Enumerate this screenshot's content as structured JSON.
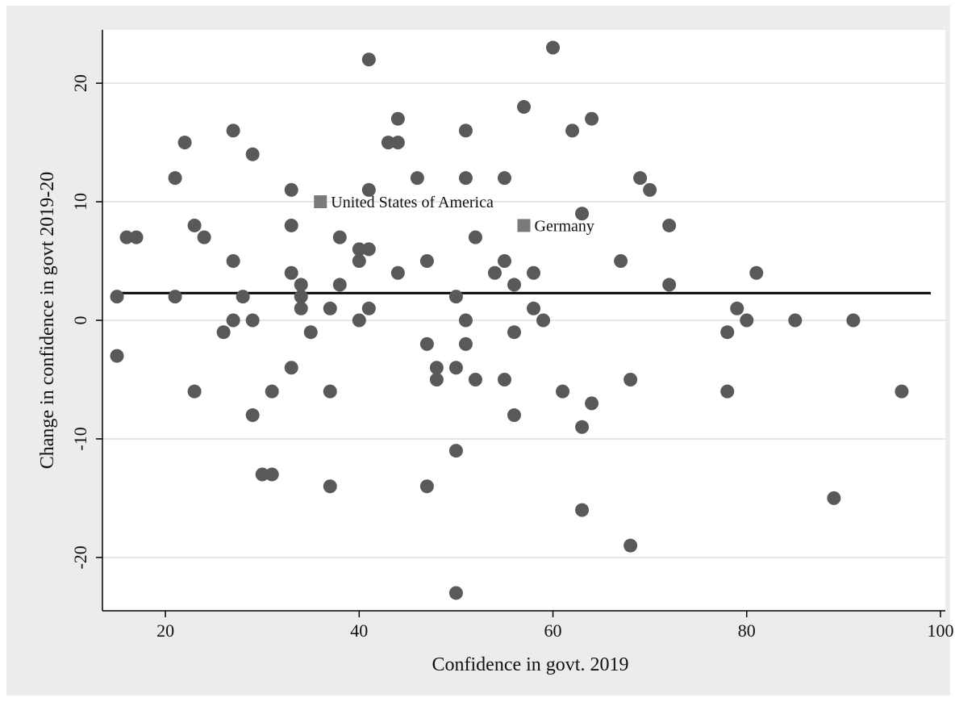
{
  "chart_data": {
    "type": "scatter",
    "title": "",
    "xlabel": "Confidence in govt. 2019",
    "ylabel": "Change in confidence in govt 2019-20",
    "xlim": [
      13.5,
      100.5
    ],
    "ylim": [
      -24.5,
      24.5
    ],
    "xticks": [
      20,
      40,
      60,
      80,
      100
    ],
    "yticks": [
      -20,
      -10,
      0,
      10,
      20
    ],
    "grid": "horizontal",
    "legend": "none",
    "colors": {
      "outer_background": "#ececec",
      "plot_background": "#ffffff",
      "points": "#595959",
      "highlight_points": "#7a7a7a",
      "fit_line": "#000000",
      "gridlines": "#e6e6e6"
    },
    "fit_line": {
      "x": [
        15,
        99
      ],
      "y": [
        2.3,
        2.3
      ]
    },
    "points": [
      {
        "x": 15,
        "y": 2
      },
      {
        "x": 15,
        "y": -3
      },
      {
        "x": 16,
        "y": 7
      },
      {
        "x": 17,
        "y": 7
      },
      {
        "x": 21,
        "y": 12
      },
      {
        "x": 21,
        "y": 2
      },
      {
        "x": 22,
        "y": 15
      },
      {
        "x": 23,
        "y": 8
      },
      {
        "x": 23,
        "y": -6
      },
      {
        "x": 24,
        "y": 7
      },
      {
        "x": 26,
        "y": -1
      },
      {
        "x": 27,
        "y": 16
      },
      {
        "x": 27,
        "y": 5
      },
      {
        "x": 27,
        "y": 0
      },
      {
        "x": 28,
        "y": 2
      },
      {
        "x": 29,
        "y": 14
      },
      {
        "x": 29,
        "y": 0
      },
      {
        "x": 29,
        "y": -8
      },
      {
        "x": 30,
        "y": -13
      },
      {
        "x": 31,
        "y": -13
      },
      {
        "x": 31,
        "y": -6
      },
      {
        "x": 33,
        "y": 11
      },
      {
        "x": 33,
        "y": 8
      },
      {
        "x": 33,
        "y": 4
      },
      {
        "x": 33,
        "y": -4
      },
      {
        "x": 34,
        "y": 3
      },
      {
        "x": 34,
        "y": 2
      },
      {
        "x": 34,
        "y": 1
      },
      {
        "x": 35,
        "y": -1
      },
      {
        "x": 37,
        "y": 1
      },
      {
        "x": 37,
        "y": -6
      },
      {
        "x": 37,
        "y": -14
      },
      {
        "x": 38,
        "y": 7
      },
      {
        "x": 38,
        "y": 3
      },
      {
        "x": 40,
        "y": 6
      },
      {
        "x": 40,
        "y": 5
      },
      {
        "x": 40,
        "y": 0
      },
      {
        "x": 41,
        "y": 22
      },
      {
        "x": 41,
        "y": 11
      },
      {
        "x": 41,
        "y": 6
      },
      {
        "x": 41,
        "y": 1
      },
      {
        "x": 43,
        "y": 15
      },
      {
        "x": 44,
        "y": 17
      },
      {
        "x": 44,
        "y": 15
      },
      {
        "x": 44,
        "y": 4
      },
      {
        "x": 46,
        "y": 12
      },
      {
        "x": 47,
        "y": 5
      },
      {
        "x": 47,
        "y": -2
      },
      {
        "x": 47,
        "y": -14
      },
      {
        "x": 48,
        "y": -4
      },
      {
        "x": 48,
        "y": -5
      },
      {
        "x": 50,
        "y": 2
      },
      {
        "x": 50,
        "y": -4
      },
      {
        "x": 50,
        "y": -11
      },
      {
        "x": 50,
        "y": -23
      },
      {
        "x": 51,
        "y": 16
      },
      {
        "x": 51,
        "y": 12
      },
      {
        "x": 51,
        "y": 0
      },
      {
        "x": 51,
        "y": -2
      },
      {
        "x": 52,
        "y": 7
      },
      {
        "x": 52,
        "y": -5
      },
      {
        "x": 54,
        "y": 4
      },
      {
        "x": 55,
        "y": 12
      },
      {
        "x": 55,
        "y": 5
      },
      {
        "x": 55,
        "y": -5
      },
      {
        "x": 56,
        "y": 3
      },
      {
        "x": 56,
        "y": -1
      },
      {
        "x": 56,
        "y": -8
      },
      {
        "x": 57,
        "y": 18
      },
      {
        "x": 58,
        "y": 4
      },
      {
        "x": 58,
        "y": 1
      },
      {
        "x": 59,
        "y": 0
      },
      {
        "x": 60,
        "y": 23
      },
      {
        "x": 61,
        "y": -6
      },
      {
        "x": 62,
        "y": 16
      },
      {
        "x": 63,
        "y": 9
      },
      {
        "x": 63,
        "y": -9
      },
      {
        "x": 63,
        "y": -16
      },
      {
        "x": 64,
        "y": 17
      },
      {
        "x": 64,
        "y": -7
      },
      {
        "x": 67,
        "y": 5
      },
      {
        "x": 68,
        "y": -5
      },
      {
        "x": 68,
        "y": -19
      },
      {
        "x": 69,
        "y": 12
      },
      {
        "x": 70,
        "y": 11
      },
      {
        "x": 72,
        "y": 8
      },
      {
        "x": 72,
        "y": 3
      },
      {
        "x": 78,
        "y": -1
      },
      {
        "x": 78,
        "y": -6
      },
      {
        "x": 79,
        "y": 1
      },
      {
        "x": 80,
        "y": 0
      },
      {
        "x": 81,
        "y": 4
      },
      {
        "x": 85,
        "y": 0
      },
      {
        "x": 89,
        "y": -15
      },
      {
        "x": 91,
        "y": 0
      },
      {
        "x": 96,
        "y": -6
      }
    ],
    "labeled_points": [
      {
        "x": 36,
        "y": 10,
        "label": "United States of America"
      },
      {
        "x": 57,
        "y": 8,
        "label": "Germany"
      }
    ]
  }
}
